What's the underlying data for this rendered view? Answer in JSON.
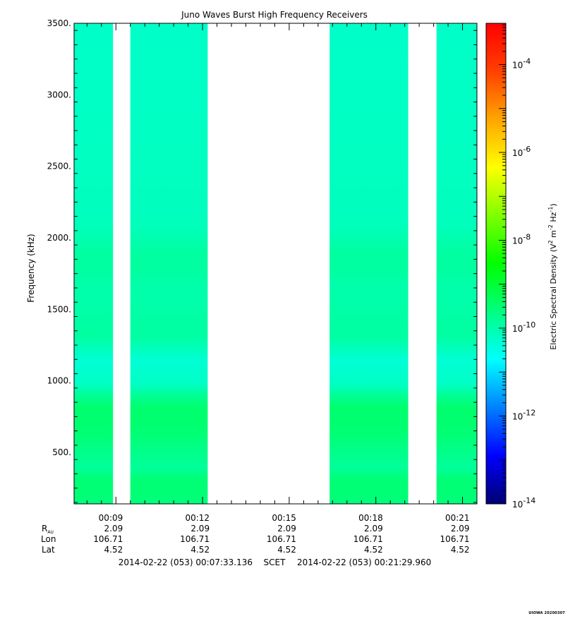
{
  "chart_data": {
    "type": "heatmap",
    "title": "Juno Waves Burst High Frequency Receivers",
    "ylabel": "Frequency (kHz)",
    "ylim": [
      140,
      3500
    ],
    "yticks": [
      500,
      1000,
      1500,
      2000,
      2500,
      3000,
      3500
    ],
    "ytick_labels": [
      "500.",
      "1000.",
      "1500.",
      "2000.",
      "2500.",
      "3000.",
      "3500."
    ],
    "xlim_minutes": [
      7.5523,
      21.4993
    ],
    "x_ticks": [
      {
        "label": "00:09",
        "minute": 9,
        "r_au": "2.09",
        "lon": "106.71",
        "lat": "4.52"
      },
      {
        "label": "00:12",
        "minute": 12,
        "r_au": "2.09",
        "lon": "106.71",
        "lat": "4.52"
      },
      {
        "label": "00:15",
        "minute": 15,
        "r_au": "2.09",
        "lon": "106.71",
        "lat": "4.52"
      },
      {
        "label": "00:18",
        "minute": 18,
        "r_au": "2.09",
        "lon": "106.71",
        "lat": "4.52"
      },
      {
        "label": "00:21",
        "minute": 21,
        "r_au": "2.09",
        "lon": "106.71",
        "lat": "4.52"
      }
    ],
    "ephemeris_labels": {
      "r": "R",
      "r_sub": "AU",
      "lon": "Lon",
      "lat": "Lat"
    },
    "time_range": {
      "start": "2014-02-22 (053) 00:07:33.136",
      "mid": "SCET",
      "end": "2014-02-22 (053) 00:21:29.960"
    },
    "data_intervals_minutes": [
      [
        7.5523,
        8.9
      ],
      [
        9.5,
        12.18
      ],
      [
        16.4,
        19.12
      ],
      [
        20.1,
        21.4993
      ]
    ],
    "frequency_profile_log10": [
      {
        "freq": 140,
        "value": -9.6
      },
      {
        "freq": 300,
        "value": -9.45
      },
      {
        "freq": 350,
        "value": -9.9
      },
      {
        "freq": 650,
        "value": -9.5
      },
      {
        "freq": 850,
        "value": -9.45
      },
      {
        "freq": 950,
        "value": -10.2
      },
      {
        "freq": 1150,
        "value": -10.35
      },
      {
        "freq": 1300,
        "value": -9.9
      },
      {
        "freq": 1650,
        "value": -10.0
      },
      {
        "freq": 1850,
        "value": -9.85
      },
      {
        "freq": 2100,
        "value": -10.15
      },
      {
        "freq": 3500,
        "value": -10.25
      }
    ],
    "colorbar": {
      "label": "Electric Spectral Density (V² m⁻² Hz⁻¹)",
      "label_main": "Electric Spectral Density (V",
      "label_parts": [
        "2",
        " m",
        "-2",
        " Hz",
        "-1",
        ")"
      ],
      "log10_range": [
        -14,
        -3.06
      ],
      "ticks": [
        {
          "exp": -4,
          "label": "10",
          "sup": "-4"
        },
        {
          "exp": -6,
          "label": "10",
          "sup": "-6"
        },
        {
          "exp": -8,
          "label": "10",
          "sup": "-8"
        },
        {
          "exp": -10,
          "label": "10",
          "sup": "-10"
        },
        {
          "exp": -12,
          "label": "10",
          "sup": "-12"
        },
        {
          "exp": -14,
          "label": "10",
          "sup": "-14"
        }
      ],
      "colors": [
        "#000070",
        "#0000ff",
        "#0080ff",
        "#00ffff",
        "#00ff80",
        "#00ff00",
        "#80ff00",
        "#ffff00",
        "#ffa500",
        "#ff4000",
        "#ff0000"
      ]
    },
    "legend": "colorbar-right",
    "grid": false,
    "stamp": "UIOWA 20200307"
  }
}
